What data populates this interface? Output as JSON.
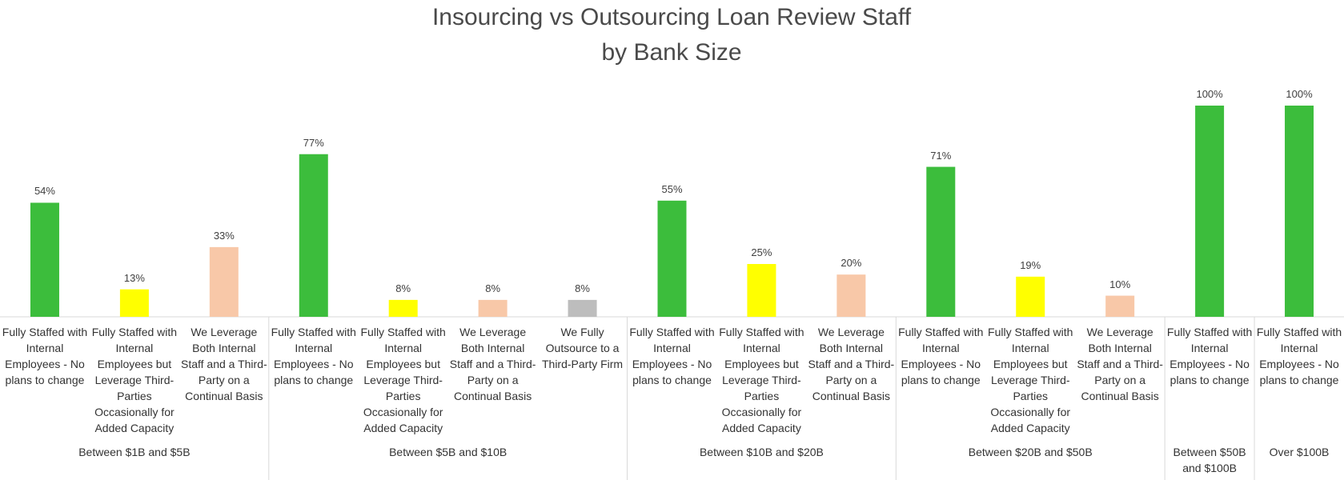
{
  "chart_data": {
    "type": "bar",
    "title": "Insourcing vs Outsourcing Loan Review Staff by Bank Size",
    "groups": [
      {
        "name": "Between $1B and $5B",
        "categories": [
          "Fully Staffed with Internal Employees - No plans to change",
          "Fully Staffed with Internal Employees but Leverage Third-Parties Occasionally for Added Capacity",
          "We Leverage Both Internal Staff and a Third-Party on a Continual Basis"
        ],
        "values": [
          54,
          13,
          33
        ],
        "value_labels": [
          "54%",
          "13%",
          "33%"
        ],
        "colors": [
          "#3cbd3c",
          "#ffff00",
          "#f8c8a8"
        ]
      },
      {
        "name": "Between $5B and $10B",
        "categories": [
          "Fully Staffed with Internal Employees - No plans to change",
          "Fully Staffed with Internal Employees but Leverage Third-Parties Occasionally for Added Capacity",
          "We Leverage Both Internal Staff and a Third-Party on a Continual Basis",
          "We Fully Outsource to a Third-Party Firm"
        ],
        "values": [
          77,
          8,
          8,
          8
        ],
        "value_labels": [
          "77%",
          "8%",
          "8%",
          "8%"
        ],
        "colors": [
          "#3cbd3c",
          "#ffff00",
          "#f8c8a8",
          "#bdbdbd"
        ]
      },
      {
        "name": "Between $10B and $20B",
        "categories": [
          "Fully Staffed with Internal Employees - No plans to change",
          "Fully Staffed with Internal Employees but Leverage Third-Parties Occasionally for Added Capacity",
          "We Leverage Both Internal Staff and a Third-Party on a Continual Basis"
        ],
        "values": [
          55,
          25,
          20
        ],
        "value_labels": [
          "55%",
          "25%",
          "20%"
        ],
        "colors": [
          "#3cbd3c",
          "#ffff00",
          "#f8c8a8"
        ]
      },
      {
        "name": "Between $20B and $50B",
        "categories": [
          "Fully Staffed with Internal Employees - No plans to change",
          "Fully Staffed with Internal Employees but Leverage Third-Parties Occasionally for Added Capacity",
          "We Leverage Both Internal Staff and a Third-Party on a Continual Basis"
        ],
        "values": [
          71,
          19,
          10
        ],
        "value_labels": [
          "71%",
          "19%",
          "10%"
        ],
        "colors": [
          "#3cbd3c",
          "#ffff00",
          "#f8c8a8"
        ]
      },
      {
        "name": "Between $50B and $100B",
        "categories": [
          "Fully Staffed with Internal Employees - No plans to change"
        ],
        "values": [
          100
        ],
        "value_labels": [
          "100%"
        ],
        "colors": [
          "#3cbd3c"
        ]
      },
      {
        "name": "Over $100B",
        "categories": [
          "Fully Staffed with Internal Employees - No plans to change"
        ],
        "values": [
          100
        ],
        "value_labels": [
          "100%"
        ],
        "colors": [
          "#3cbd3c"
        ]
      }
    ]
  }
}
